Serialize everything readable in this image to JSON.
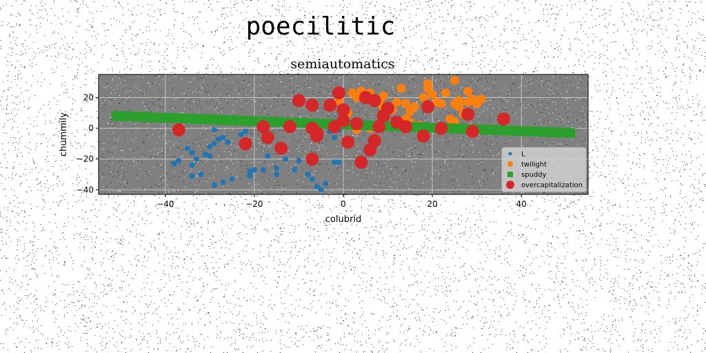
{
  "figure_title": "poecilitic",
  "chart_data": {
    "type": "scatter",
    "title": "semiautomatics",
    "xlabel": "colubrid",
    "ylabel": "chummily",
    "xlim": [
      -55,
      55
    ],
    "ylim": [
      -43,
      35
    ],
    "xticks": [
      -40,
      -20,
      0,
      20,
      40
    ],
    "yticks": [
      -40,
      -20,
      0,
      20
    ],
    "grid": true,
    "legend_position": "lower-right",
    "plot_background": "#808080",
    "series": [
      {
        "name": "L",
        "marker": "circle",
        "color": "#1f77b4",
        "points": [
          [
            -37,
            -21
          ],
          [
            -38,
            -23
          ],
          [
            -35,
            -13
          ],
          [
            -34,
            -16
          ],
          [
            -34,
            -24
          ],
          [
            -33,
            -20
          ],
          [
            -32,
            -30
          ],
          [
            -34,
            -31
          ],
          [
            -31,
            -17
          ],
          [
            -30,
            -12
          ],
          [
            -29,
            -10
          ],
          [
            -30,
            -18
          ],
          [
            -29,
            -1
          ],
          [
            -28,
            -7
          ],
          [
            -27,
            -6
          ],
          [
            -26,
            -9
          ],
          [
            -29,
            -37
          ],
          [
            -27,
            -35
          ],
          [
            -25,
            -33
          ],
          [
            -23,
            -4
          ],
          [
            -22,
            -2
          ],
          [
            -22,
            -10
          ],
          [
            -21,
            -28
          ],
          [
            -21,
            -31
          ],
          [
            -20,
            -27
          ],
          [
            -18,
            -27
          ],
          [
            -17,
            -18
          ],
          [
            -15,
            -26
          ],
          [
            -15,
            -30
          ],
          [
            -13,
            -20
          ],
          [
            -11,
            -27
          ],
          [
            -10,
            -21
          ],
          [
            -8,
            -30
          ],
          [
            -7,
            -33
          ],
          [
            -6,
            -38
          ],
          [
            -5,
            -40
          ],
          [
            -4,
            -36
          ],
          [
            -2,
            -22
          ],
          [
            -1,
            -22
          ],
          [
            -2,
            -6
          ],
          [
            -3,
            -2
          ],
          [
            -1,
            -1
          ]
        ]
      },
      {
        "name": "twilight",
        "marker": "circle",
        "color": "#ff7f0e",
        "points": [
          [
            -1,
            18
          ],
          [
            1,
            10
          ],
          [
            2,
            23
          ],
          [
            3,
            20
          ],
          [
            4,
            24
          ],
          [
            5,
            22
          ],
          [
            6,
            23
          ],
          [
            7,
            19
          ],
          [
            8,
            17
          ],
          [
            9,
            21
          ],
          [
            9,
            13
          ],
          [
            10,
            11
          ],
          [
            11,
            12
          ],
          [
            12,
            17
          ],
          [
            13,
            26
          ],
          [
            14,
            16
          ],
          [
            15,
            11
          ],
          [
            15,
            4
          ],
          [
            16,
            14
          ],
          [
            17,
            2
          ],
          [
            18,
            20
          ],
          [
            19,
            26
          ],
          [
            19,
            29
          ],
          [
            20,
            22
          ],
          [
            21,
            17
          ],
          [
            22,
            16
          ],
          [
            23,
            23
          ],
          [
            25,
            31
          ],
          [
            25,
            16
          ],
          [
            26,
            18
          ],
          [
            26,
            14
          ],
          [
            27,
            9
          ],
          [
            28,
            17
          ],
          [
            28,
            24
          ],
          [
            29,
            19
          ],
          [
            30,
            16
          ],
          [
            31,
            19
          ],
          [
            24,
            6
          ],
          [
            25,
            4
          ],
          [
            6,
            0
          ],
          [
            3,
            -1
          ],
          [
            14,
            6
          ]
        ]
      },
      {
        "name": "spuddy",
        "marker": "square",
        "color": "#2ca02c",
        "line_from": [
          -51,
          8
        ],
        "line_to": [
          51,
          -3
        ]
      },
      {
        "name": "overcapitalization",
        "marker": "circle",
        "color": "#d62728",
        "points": [
          [
            -37,
            -1
          ],
          [
            -18,
            1
          ],
          [
            -17,
            -6
          ],
          [
            -22,
            -10
          ],
          [
            -14,
            -13
          ],
          [
            -12,
            1
          ],
          [
            -10,
            18
          ],
          [
            -7,
            -20
          ],
          [
            -7,
            0
          ],
          [
            -6,
            -3
          ],
          [
            -6,
            -5
          ],
          [
            -7,
            15
          ],
          [
            -3,
            15
          ],
          [
            -2,
            1
          ],
          [
            -1,
            23
          ],
          [
            0,
            12
          ],
          [
            0,
            5
          ],
          [
            1,
            -9
          ],
          [
            3,
            3
          ],
          [
            4,
            -22
          ],
          [
            5,
            20
          ],
          [
            6,
            -14
          ],
          [
            7,
            -8
          ],
          [
            7,
            18
          ],
          [
            8,
            1
          ],
          [
            9,
            8
          ],
          [
            10,
            13
          ],
          [
            12,
            4
          ],
          [
            14,
            1
          ],
          [
            18,
            -5
          ],
          [
            19,
            14
          ],
          [
            22,
            0
          ],
          [
            28,
            9
          ],
          [
            29,
            -2
          ],
          [
            36,
            6
          ]
        ]
      }
    ]
  }
}
